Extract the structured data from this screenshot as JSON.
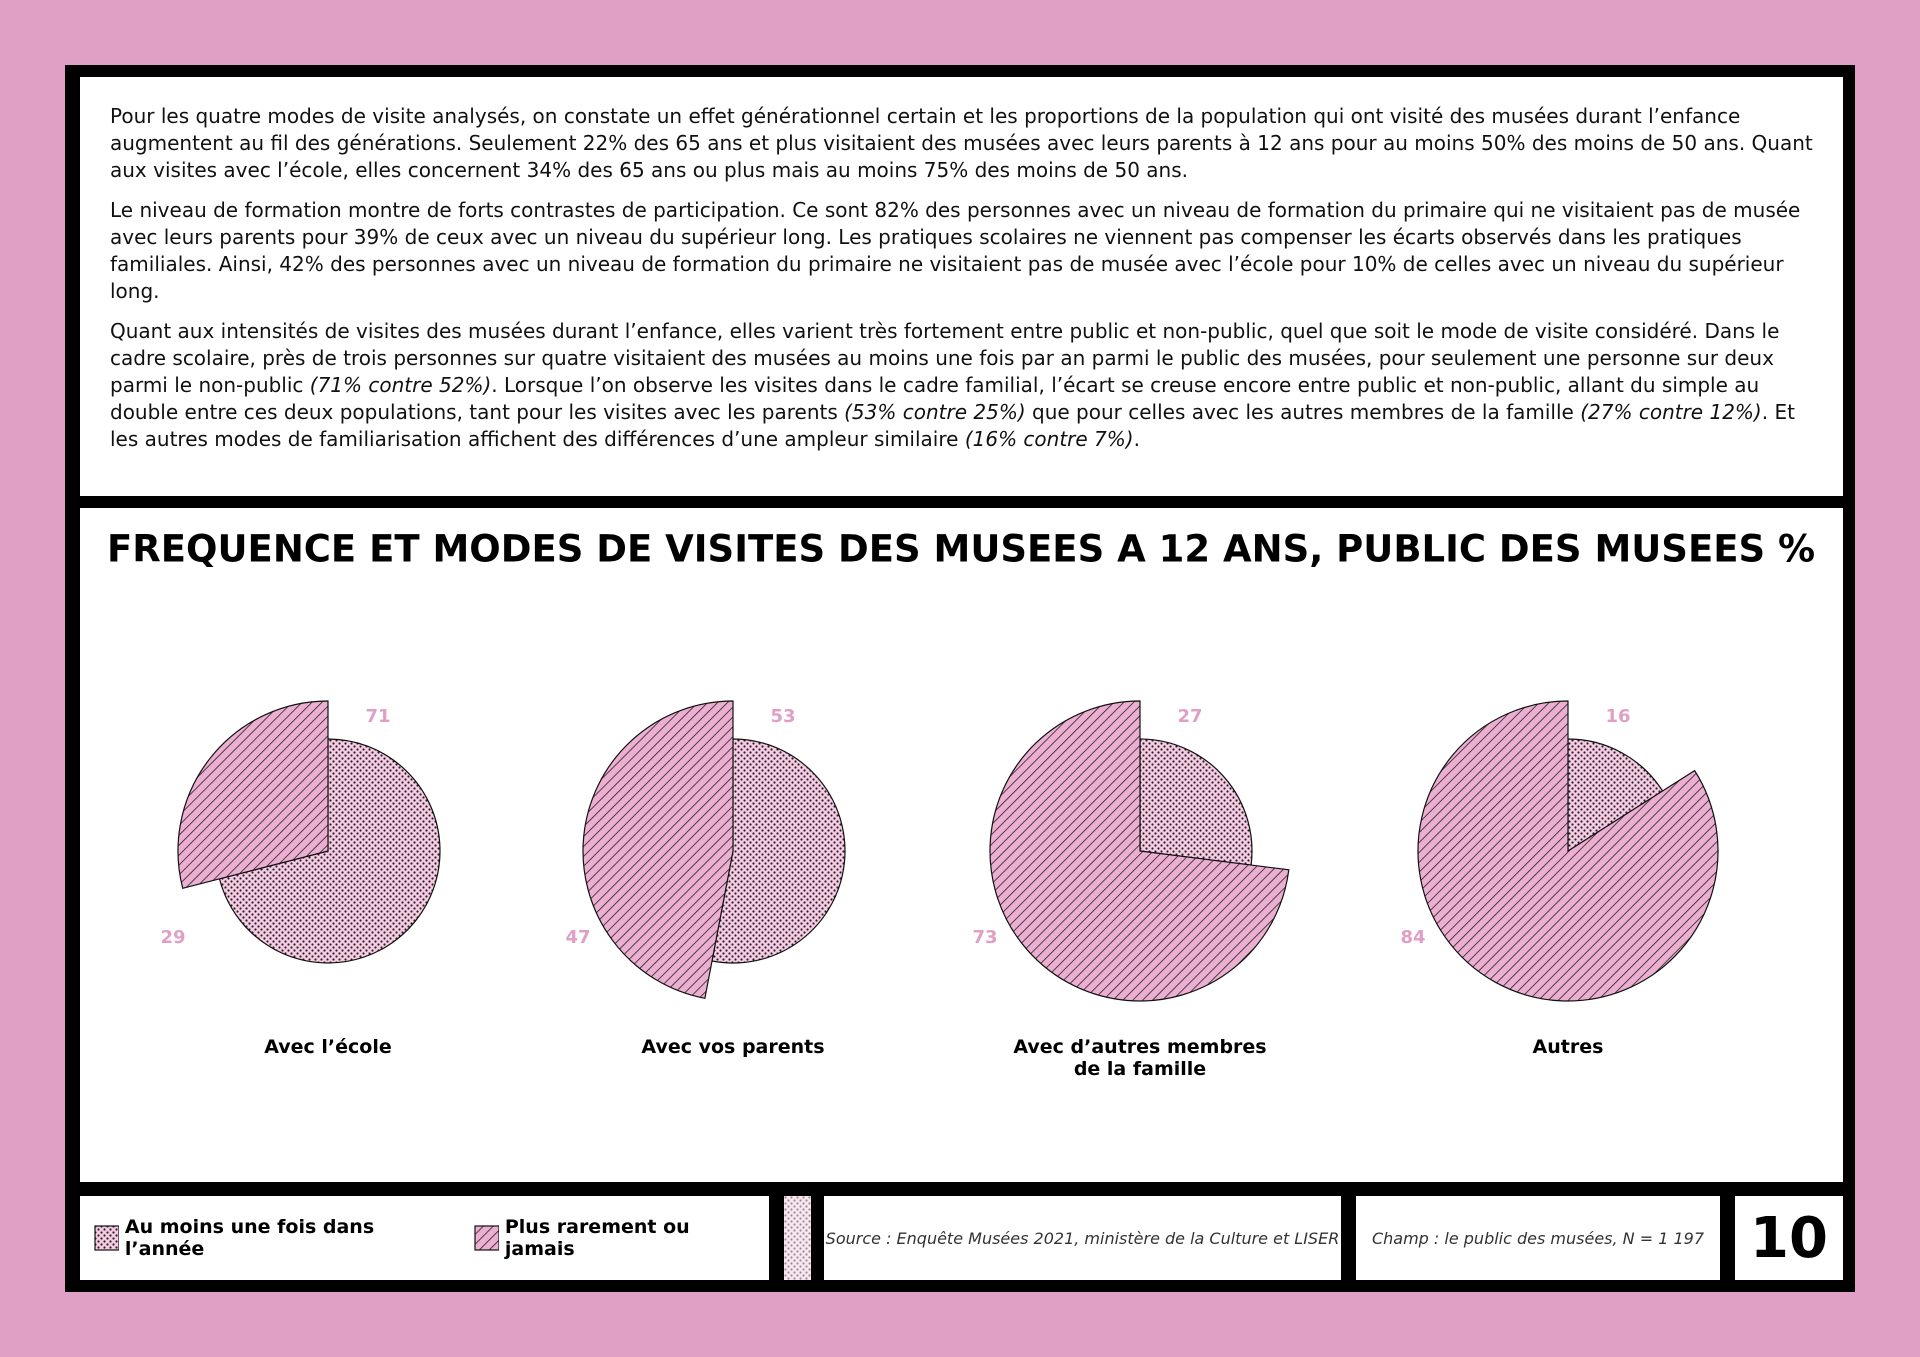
{
  "text": {
    "paragraphs": [
      [
        "Pour les quatre modes de visite analysés, on constate un effet générationnel certain et les proportions de la population qui ont visité des musées durant l’enfance augmentent au fil des générations. Seulement 22% des 65 ans et plus visitaient des musées avec leurs parents à 12 ans pour au moins 50% des moins de 50 ans. Quant aux visites avec l’école, elles concernent 34% des 65 ans ou plus mais au moins 75% des moins de 50 ans."
      ],
      [
        "Le niveau de formation montre de forts contrastes de participation. Ce sont 82% des personnes avec un niveau de formation du primaire qui ne visitaient pas de musée avec leurs parents pour 39% de ceux avec un niveau du supérieur long. Les pratiques scolaires ne viennent pas compenser les écarts observés dans les pratiques familiales. Ainsi, 42% des personnes avec un niveau de formation du primaire ne visitaient pas de musée avec l’école pour 10% de celles avec un niveau du supérieur long."
      ],
      [
        "Quant aux intensités de visites des musées durant l’enfance, elles varient très fortement entre public et non-public, quel que soit le mode de visite considéré. Dans le cadre scolaire, près de trois personnes sur quatre visitaient des musées au moins une fois par an parmi le public des musées, pour seulement une personne sur deux parmi le non-public ",
        "(71% contre 52%)",
        ". Lorsque l’on observe les visites dans le cadre familial, l’écart se creuse encore entre public et non-public, allant du simple au double entre ces deux populations, tant pour les visites avec les parents ",
        "(53% contre 25%)",
        " que pour celles avec les autres membres de la famille ",
        "(27% contre 12%)",
        ". Et les autres modes de familiarisation affichent des différences d’une ampleur similaire ",
        "(16% contre 7%)",
        "."
      ]
    ]
  },
  "chart_data": {
    "type": "pie",
    "title": "FREQUENCE ET MODES DE VISITES DES MUSEES A 12 ANS, PUBLIC DES MUSEES %",
    "categories": [
      "Avec l’école",
      "Avec vos parents",
      "Avec d’autres membres de la famille",
      "Autres"
    ],
    "series": [
      {
        "name": "Au moins une fois dans l’année",
        "color": "#f6cbe3",
        "pattern": "dots",
        "values": [
          71,
          53,
          27,
          16
        ]
      },
      {
        "name": "Plus rarement ou jamais",
        "color": "#ecaed1",
        "pattern": "hatch",
        "values": [
          29,
          47,
          73,
          84
        ]
      }
    ]
  },
  "footer": {
    "source": "Source : Enquête Musées 2021, ministère de la Culture et LISER",
    "scope": "Champ : le public des musées, N = 1 197",
    "page_number": "10"
  }
}
